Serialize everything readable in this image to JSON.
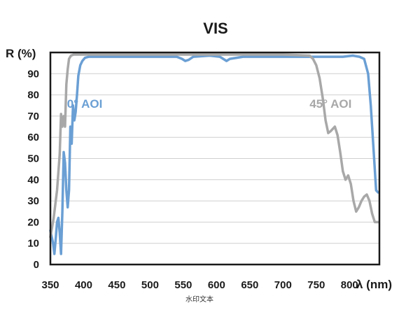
{
  "chart_data": {
    "type": "line",
    "title": "VIS",
    "ylabel": "R (%)",
    "xlabel": "λ (nm)",
    "xlim": [
      350,
      845
    ],
    "ylim": [
      0,
      100
    ],
    "x_ticks": [
      350,
      400,
      450,
      500,
      550,
      600,
      650,
      700,
      750,
      800
    ],
    "y_ticks": [
      0,
      10,
      20,
      30,
      40,
      50,
      60,
      70,
      80,
      90
    ],
    "grid": "horizontal",
    "colors": {
      "aoi0": "#6a9fd4",
      "aoi45": "#a8a8a8",
      "axis": "#1a1a1a",
      "grid": "#cfcfcf"
    },
    "series": [
      {
        "name": "0° AOI",
        "color": "#6a9fd4",
        "x": [
          350,
          354,
          356,
          358,
          360,
          362,
          364,
          366,
          368,
          370,
          372,
          374,
          376,
          378,
          380,
          382,
          384,
          386,
          388,
          390,
          392,
          395,
          398,
          402,
          408,
          420,
          450,
          500,
          540,
          548,
          553,
          558,
          565,
          590,
          605,
          610,
          615,
          620,
          640,
          700,
          760,
          790,
          805,
          815,
          822,
          828,
          832,
          836,
          840,
          843
        ],
        "y": [
          16,
          10,
          5,
          12,
          20,
          22,
          15,
          5,
          25,
          53,
          48,
          35,
          27,
          35,
          65,
          57,
          75,
          68,
          72,
          80,
          89,
          94,
          96,
          97.5,
          98,
          98,
          98,
          98,
          98,
          97,
          96,
          96.5,
          98,
          98.5,
          98,
          97,
          96,
          97,
          98,
          98,
          98,
          98,
          98.5,
          98,
          97,
          90,
          75,
          55,
          35,
          34
        ]
      },
      {
        "name": "45° AOI",
        "color": "#a8a8a8",
        "x": [
          350,
          355,
          360,
          364,
          366,
          368,
          370,
          372,
          374,
          376,
          378,
          381,
          385,
          390,
          400,
          450,
          520,
          600,
          700,
          740,
          745,
          750,
          755,
          760,
          764,
          768,
          772,
          778,
          782,
          786,
          790,
          794,
          798,
          802,
          806,
          810,
          814,
          818,
          822,
          826,
          830,
          834,
          838,
          843
        ],
        "y": [
          13,
          22,
          35,
          52,
          71,
          65,
          70,
          65,
          85,
          92,
          97,
          98.5,
          99,
          99,
          99,
          99,
          99,
          99,
          99,
          98.5,
          97,
          94,
          88,
          78,
          68,
          62,
          63,
          65,
          61,
          53,
          44,
          40,
          42,
          38,
          30,
          25,
          27,
          30,
          32,
          33,
          30,
          24,
          20,
          20
        ]
      }
    ],
    "annotations": [
      {
        "text": "0° AOI",
        "x": 375,
        "y": 74,
        "series": "0° AOI"
      },
      {
        "text": "45° AOI",
        "x": 740,
        "y": 74,
        "series": "45° AOI"
      }
    ]
  },
  "watermark": "水印文本"
}
